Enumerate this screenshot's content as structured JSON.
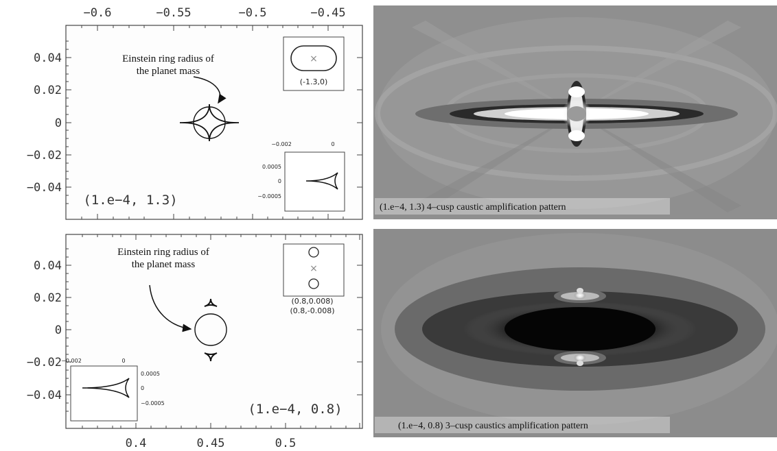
{
  "top_axis": {
    "ticks": [
      "−0.6",
      "−0.55",
      "−0.5",
      "−0.45"
    ]
  },
  "bottom_axis": {
    "ticks": [
      "0.4",
      "0.45",
      "0.5"
    ]
  },
  "y_axis": {
    "ticks": [
      "0.04",
      "0.02",
      "0",
      "−0.02",
      "−0.04"
    ]
  },
  "top_panel": {
    "annotation_line1": "Einstein ring radius of",
    "annotation_line2": "the planet mass",
    "params": "(1.e−4,  1.3)",
    "inset_coord": "(-1.3,0)",
    "zoom_inset": {
      "x_ticks": [
        "−0.002",
        "0"
      ],
      "y_ticks": [
        "0.0005",
        "0",
        "−0.0005"
      ]
    }
  },
  "bottom_panel": {
    "annotation_line1": "Einstein ring radius of",
    "annotation_line2": "the planet mass",
    "params": "(1.e−4,  0.8)",
    "inset_coord_1": "(0.8,0.008)",
    "inset_coord_2": "(0.8,-0.008)",
    "zoom_inset": {
      "x_ticks": [
        "−0.002",
        "0"
      ],
      "y_ticks": [
        "0.0005",
        "0",
        "−0.0005"
      ]
    }
  },
  "top_image": {
    "caption": "(1.e−4, 1.3)  4–cusp caustic amplification pattern"
  },
  "bottom_image": {
    "caption": "(1.e−4, 0.8)  3–cusp caustics amplification pattern"
  }
}
